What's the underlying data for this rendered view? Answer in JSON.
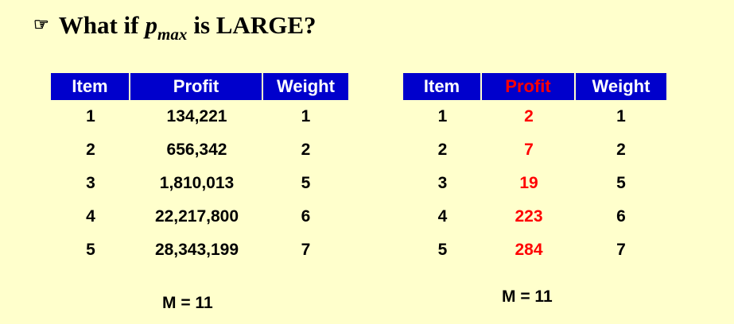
{
  "heading": {
    "bullet_icon": "pointing-hand-icon",
    "prefix": "What if",
    "variable": "p",
    "subscript": "max",
    "suffix": "is LARGE?"
  },
  "colors": {
    "background": "#ffffcc",
    "header_bg": "#0000cc",
    "header_text": "#ffffff",
    "highlight": "#ff0000"
  },
  "left_table": {
    "headers": [
      "Item",
      "Profit",
      "Weight"
    ],
    "rows": [
      [
        "1",
        "134,221",
        "1"
      ],
      [
        "2",
        "656,342",
        "2"
      ],
      [
        "3",
        "1,810,013",
        "5"
      ],
      [
        "4",
        "22,217,800",
        "6"
      ],
      [
        "5",
        "28,343,199",
        "7"
      ]
    ],
    "capacity": "M = 11"
  },
  "right_table": {
    "headers": [
      "Item",
      "Profit",
      "Weight"
    ],
    "rows": [
      [
        "1",
        "2",
        "1"
      ],
      [
        "2",
        "7",
        "2"
      ],
      [
        "3",
        "19",
        "5"
      ],
      [
        "4",
        "223",
        "6"
      ],
      [
        "5",
        "284",
        "7"
      ]
    ],
    "capacity": "M = 11"
  }
}
